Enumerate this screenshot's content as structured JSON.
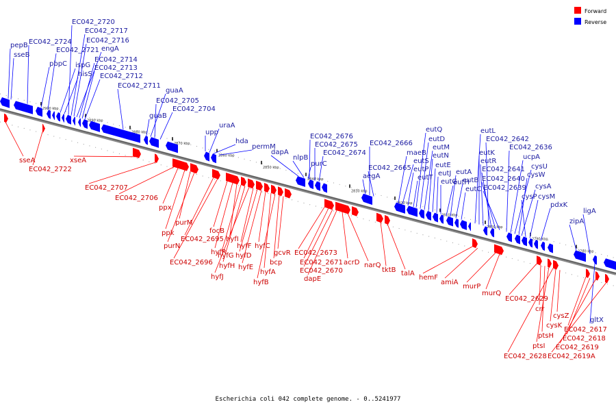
{
  "caption": "Escherichia coli 042 complete genome. - 0..5241977",
  "legend": {
    "forward": {
      "label": "Forward",
      "color": "#ff0000"
    },
    "reverse": {
      "label": "Reverse",
      "color": "#0000ff"
    }
  },
  "ticks": [
    "2900 kbp",
    "2890 kbp",
    "2880 kbp",
    "2870 kbp",
    "2860 kbp",
    "2850 kbp",
    "2840 kbp",
    "2830 kbp",
    "2820 kbp",
    "2810 kbp",
    "2800 kbp",
    "2790 kbp",
    "2780 kbp"
  ],
  "reverse_genes": [
    "pepB",
    "sseB",
    "EC042_2724",
    "pbpC",
    "EC042_2721",
    "ispG",
    "hisS",
    "EC042_2720",
    "EC042_2717",
    "EC042_2716",
    "engA",
    "EC042_2714",
    "EC042_2713",
    "EC042_2712",
    "EC042_2711",
    "guaB",
    "guaA",
    "EC042_2705",
    "EC042_2704",
    "upp",
    "uraA",
    "hda",
    "permM",
    "dapA",
    "nlpB",
    "purC",
    "EC042_2676",
    "EC042_2675",
    "EC042_2674",
    "aegA",
    "EC042_2666",
    "EC042_2665",
    "maeB",
    "eutS",
    "eutP",
    "eutT",
    "eutQ",
    "eutD",
    "eutM",
    "eutN",
    "eutE",
    "eutJ",
    "eutG",
    "eutH",
    "eutA",
    "eutB",
    "eutC",
    "eutL",
    "eutK",
    "eutR",
    "EC042_2642",
    "EC042_2641",
    "EC042_2640",
    "EC042_2639",
    "EC042_2636",
    "ucpA",
    "cysU",
    "cysW",
    "cysA",
    "cysP",
    "cysM",
    "pdxK",
    "zipA",
    "ligA",
    "gltX"
  ],
  "forward_genes": [
    "sseA",
    "EC042_2722",
    "xseA",
    "EC042_2707",
    "EC042_2706",
    "ppx",
    "ppk",
    "purM",
    "purN",
    "EC042_2695",
    "EC042_2696",
    "focB",
    "hyfR",
    "hyfI",
    "hyfG",
    "hyfH",
    "hyfJ",
    "hyfF",
    "hyfD",
    "hyfE",
    "hyfC",
    "hyfA",
    "hyfB",
    "bcp",
    "gcvR",
    "EC042_2673",
    "EC042_2671",
    "EC042_2670",
    "dapE",
    "acrD",
    "narQ",
    "tktB",
    "talA",
    "hemF",
    "amiA",
    "murP",
    "murQ",
    "EC042_2629",
    "crr",
    "ptsH",
    "ptsI",
    "EC042_2628",
    "cysK",
    "cysZ",
    "EC042_2617",
    "EC042_2618",
    "EC042_2619",
    "EC042_2619A"
  ]
}
